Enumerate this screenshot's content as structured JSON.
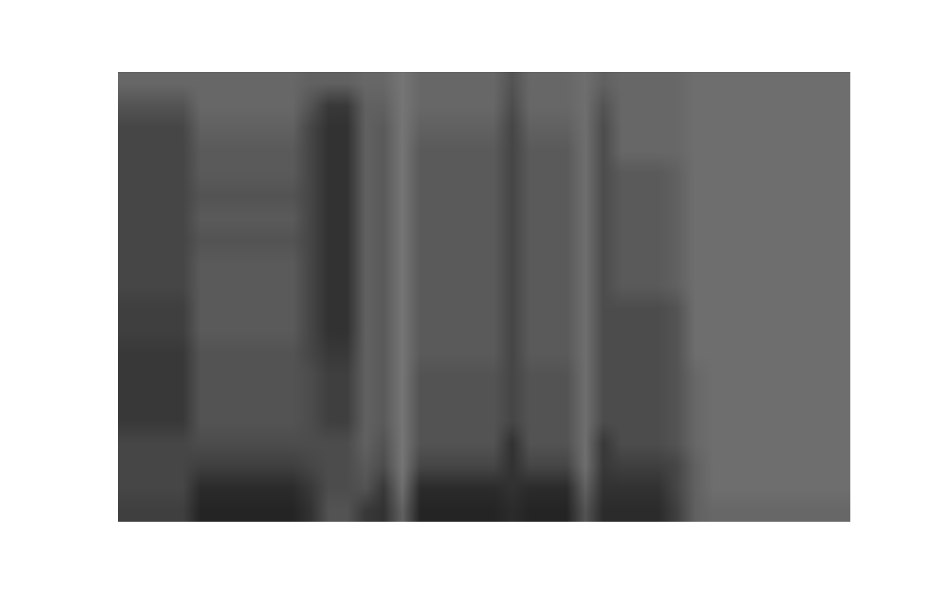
{
  "chart_data": {
    "type": "heatmap",
    "tick_labels": false,
    "grid": false,
    "zlim": [
      0,
      10
    ],
    "cells": [
      [
        3.5,
        3.5,
        3.5,
        3.5,
        3.5,
        3.5,
        3.5,
        3.5,
        3.5,
        3.5,
        4,
        4,
        4,
        3.5,
        3.5,
        2.5,
        3.5,
        3.5,
        3.5,
        3.5,
        3.5,
        5,
        3.5,
        3.5,
        3.5,
        3,
        4,
        3.5,
        3.5,
        3.5,
        3.5,
        3,
        3,
        3,
        3,
        3,
        3,
        3,
        3,
        3
      ],
      [
        5,
        5,
        5,
        5,
        3.5,
        3.5,
        3.5,
        3.5,
        3.5,
        3.5,
        5,
        7,
        7,
        4,
        4,
        2.5,
        3.5,
        3.5,
        3.5,
        3.5,
        3.5,
        5.5,
        3.5,
        3.5,
        3.5,
        3,
        5,
        3.5,
        3.5,
        3.5,
        3.5,
        3,
        3,
        3,
        3,
        3,
        3,
        3,
        3,
        3
      ],
      [
        6,
        6,
        6,
        6,
        4,
        4,
        4,
        4,
        4,
        4,
        6,
        7.5,
        7.5,
        4,
        4.5,
        2.5,
        4,
        4,
        4,
        4,
        4,
        6,
        4,
        4,
        4,
        3,
        5.5,
        3.5,
        3.5,
        3.5,
        3.5,
        3,
        3,
        3,
        3,
        3,
        3,
        3,
        3,
        3
      ],
      [
        6,
        6,
        6,
        6,
        4.5,
        4.5,
        4.5,
        4.5,
        4.5,
        4.5,
        6,
        7.5,
        7.5,
        4,
        4.5,
        2.5,
        4.5,
        4.5,
        4.5,
        4.5,
        4.5,
        6,
        4.5,
        4.5,
        4.5,
        3,
        5.5,
        3.5,
        3.5,
        3.5,
        3.5,
        3,
        3,
        3,
        3,
        3,
        3,
        3,
        3,
        3
      ],
      [
        6,
        6,
        6,
        6,
        4.5,
        4.5,
        4.5,
        4.5,
        4.5,
        4.5,
        6,
        7.5,
        7.5,
        4,
        4.5,
        2.5,
        4.5,
        4.5,
        4.5,
        4.5,
        4.5,
        6,
        4.5,
        4.5,
        4.5,
        3,
        5.5,
        4.5,
        4.5,
        4.5,
        4,
        3,
        3,
        3,
        3,
        3,
        3,
        3,
        3,
        3
      ],
      [
        6,
        6,
        6,
        6,
        5,
        5,
        5,
        5,
        5,
        5,
        6,
        7.5,
        7.5,
        4,
        4.5,
        2.5,
        4.5,
        4.5,
        4.5,
        4.5,
        4.5,
        6,
        4.5,
        4.5,
        4.5,
        3,
        5.5,
        4.5,
        4.5,
        4.5,
        4,
        3,
        3,
        3,
        3,
        3,
        3,
        3,
        3,
        3
      ],
      [
        6,
        6,
        6,
        6,
        4.5,
        4.5,
        4.5,
        4.5,
        4.5,
        4.5,
        6,
        7.5,
        7.5,
        4,
        4.5,
        2.5,
        4.5,
        4.5,
        4.5,
        4.5,
        4.5,
        6,
        4.5,
        4.5,
        4.5,
        3,
        5.5,
        4.5,
        4.5,
        4.5,
        4,
        3,
        3,
        3,
        3,
        3,
        3,
        3,
        3,
        3
      ],
      [
        6,
        6,
        6,
        6,
        5,
        5,
        5,
        5,
        5,
        5,
        6,
        7.5,
        7.5,
        4,
        4.5,
        2.5,
        4.5,
        4.5,
        4.5,
        4.5,
        4.5,
        6,
        4.5,
        4.5,
        4.5,
        3,
        5.5,
        4.5,
        4.5,
        4.5,
        4,
        3,
        3,
        3,
        3,
        3,
        3,
        3,
        3,
        3
      ],
      [
        6,
        6,
        6,
        6,
        4.5,
        4.5,
        4.5,
        4.5,
        4.5,
        4.5,
        6,
        7.5,
        7.5,
        4,
        4.5,
        2.5,
        4.5,
        4.5,
        4.5,
        4.5,
        4.5,
        6,
        4.5,
        4.5,
        4.5,
        3,
        5.5,
        4.5,
        4.5,
        4.5,
        4,
        3,
        3,
        3,
        3,
        3,
        3,
        3,
        3,
        3
      ],
      [
        6,
        6,
        6,
        6,
        4.5,
        4.5,
        4.5,
        4.5,
        4.5,
        4.5,
        6,
        7.5,
        7.5,
        4,
        4.5,
        2.5,
        4.5,
        4.5,
        4.5,
        4.5,
        4.5,
        6,
        4.5,
        4.5,
        4.5,
        3,
        5.5,
        4.5,
        4.5,
        4.5,
        4,
        3,
        3,
        3,
        3,
        3,
        3,
        3,
        3,
        3
      ],
      [
        6.5,
        6.5,
        6.5,
        6.5,
        4.5,
        4.5,
        4.5,
        4.5,
        4.5,
        4.5,
        6,
        7.5,
        7.5,
        4,
        4.5,
        2.5,
        4.5,
        4.5,
        4.5,
        4.5,
        4.5,
        6,
        4.5,
        4.5,
        4.5,
        3,
        5.5,
        5.5,
        5.5,
        5.5,
        5,
        3,
        3,
        3,
        3,
        3,
        3,
        3,
        3,
        3
      ],
      [
        6.5,
        6.5,
        6.5,
        6.5,
        4.5,
        4.5,
        4.5,
        4.5,
        4.5,
        4.5,
        6,
        7.5,
        7.5,
        4,
        4.5,
        2.5,
        4.5,
        4.5,
        4.5,
        4.5,
        4.5,
        6,
        4.5,
        4.5,
        4.5,
        3,
        5.5,
        5.5,
        5.5,
        5.5,
        5,
        3,
        3,
        3,
        3,
        3,
        3,
        3,
        3,
        3
      ],
      [
        7,
        7,
        7,
        7,
        5,
        5,
        5,
        5,
        5,
        5,
        6,
        7,
        7,
        4,
        4.5,
        2.5,
        4.5,
        4.5,
        4.5,
        4.5,
        4.5,
        6,
        4.5,
        4.5,
        4.5,
        3,
        5.5,
        5.5,
        5.5,
        5.5,
        5,
        3,
        3,
        3,
        3,
        3,
        3,
        3,
        3,
        3
      ],
      [
        7,
        7,
        7,
        7,
        5,
        5,
        5,
        5,
        5,
        5,
        5.5,
        6.5,
        6.5,
        4,
        4.5,
        2.5,
        5,
        5,
        5,
        5,
        5,
        6,
        5,
        5,
        5,
        3,
        5.5,
        5.5,
        5.5,
        5.5,
        5,
        3.5,
        3,
        3,
        3,
        3,
        3,
        3,
        3,
        3
      ],
      [
        7,
        7,
        7,
        7,
        5,
        5,
        5,
        5,
        5,
        5,
        5.5,
        6.5,
        6.5,
        4,
        4.5,
        2.5,
        5,
        5,
        5,
        5,
        5,
        6,
        5,
        5,
        5,
        3,
        5.5,
        5.5,
        5.5,
        5.5,
        5,
        3.5,
        3,
        3,
        3,
        3,
        3,
        3,
        3,
        3
      ],
      [
        7,
        7,
        7,
        7,
        5,
        5,
        5,
        5,
        5,
        5,
        5.5,
        6.5,
        6.5,
        4,
        4.5,
        2.5,
        5,
        5,
        5,
        5,
        5,
        6,
        5,
        5,
        5,
        3,
        5.5,
        5.5,
        5.5,
        5.5,
        5,
        3.5,
        3,
        3,
        3,
        3,
        3,
        3,
        3,
        3
      ],
      [
        6,
        6,
        6,
        6,
        5.5,
        5.5,
        5.5,
        5.5,
        5.5,
        5.5,
        5.5,
        5.5,
        5.5,
        4,
        5,
        2.5,
        5,
        5,
        5,
        5,
        5,
        7.5,
        5,
        5,
        5,
        3,
        7,
        5.5,
        5.5,
        5.5,
        5,
        3.5,
        3,
        3,
        3,
        3,
        3,
        3,
        3,
        3
      ],
      [
        6,
        6,
        6,
        6,
        6.5,
        6.5,
        6.5,
        6.5,
        6.5,
        6.5,
        6,
        5.5,
        5.5,
        4.5,
        5.5,
        2.5,
        6,
        6,
        6,
        6,
        6,
        7.5,
        6,
        6,
        6,
        3,
        7,
        6.5,
        6.5,
        6.5,
        6,
        4,
        3,
        3,
        3,
        3,
        3,
        3,
        3,
        3
      ],
      [
        6,
        6,
        6,
        6,
        8,
        8,
        8,
        8,
        8,
        8,
        7,
        5.5,
        5.5,
        5,
        7,
        3,
        8,
        8,
        8,
        8,
        8,
        7.5,
        8,
        8,
        8,
        4,
        7.5,
        7.5,
        7.5,
        7.5,
        6,
        4,
        3,
        3,
        3,
        3,
        3,
        3,
        3,
        3
      ],
      [
        6.5,
        6.5,
        6.5,
        6.5,
        8.5,
        8.5,
        8.5,
        8.5,
        8.5,
        8.5,
        7.5,
        5,
        5,
        7,
        7.5,
        4,
        8.5,
        8.5,
        8.5,
        8.5,
        8.5,
        8,
        8.5,
        8.5,
        8.5,
        5,
        8,
        8,
        8,
        8,
        6.5,
        4,
        3.5,
        3.5,
        3.5,
        3.5,
        3.5,
        3.5,
        3.5,
        3.5
      ]
    ]
  }
}
